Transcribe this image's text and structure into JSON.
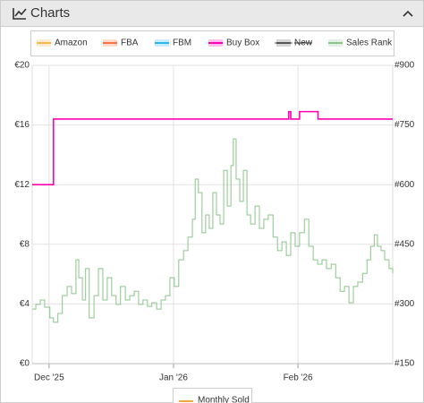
{
  "header": {
    "title": "Charts"
  },
  "chart_data": {
    "type": "line",
    "xticks": [
      {
        "value": 0,
        "label": "Dec '25"
      },
      {
        "value": 31,
        "label": "Jan '26"
      },
      {
        "value": 62,
        "label": "Feb '26"
      }
    ],
    "xlim": [
      -4.2,
      85.6
    ],
    "ylim": [
      0,
      20
    ],
    "yticks": [
      {
        "value": 0,
        "label": "€0"
      },
      {
        "value": 4,
        "label": "€4"
      },
      {
        "value": 8,
        "label": "€8"
      },
      {
        "value": 12,
        "label": "€12"
      },
      {
        "value": 16,
        "label": "€16"
      },
      {
        "value": 20,
        "label": "€20"
      }
    ],
    "y2lim": [
      150,
      900
    ],
    "y2ticks": [
      {
        "value": 150,
        "label": "#150"
      },
      {
        "value": 300,
        "label": "#300"
      },
      {
        "value": 450,
        "label": "#450"
      },
      {
        "value": 600,
        "label": "#600"
      },
      {
        "value": 750,
        "label": "#750"
      },
      {
        "value": 900,
        "label": "#900"
      }
    ],
    "grid": true,
    "step": true,
    "series": [
      {
        "name": "Amazon",
        "color": "#ffb74d",
        "x": [],
        "values": []
      },
      {
        "name": "FBA",
        "color": "#ff7043",
        "x": [],
        "values": []
      },
      {
        "name": "FBM",
        "color": "#29b6f6",
        "x": [],
        "values": []
      },
      {
        "name": "Buy Box",
        "color": "#ff00b4",
        "x": [
          -4.2,
          1.1,
          59.7,
          60.2,
          62.4,
          67.0,
          85.6
        ],
        "values": [
          12,
          16.4,
          16.9,
          16.4,
          16.9,
          16.4,
          16.4
        ]
      },
      {
        "name": "New",
        "color": "#555555",
        "visible": false,
        "x": [],
        "values": []
      },
      {
        "name": "Sales Rank",
        "color": "#8bc48b",
        "axis": "y2",
        "x": [
          -4.2,
          -3.3,
          -2.2,
          -1.1,
          0.2,
          1.1,
          2.2,
          3.3,
          4.5,
          5.6,
          6.7,
          7.4,
          8.3,
          9.1,
          10.0,
          11.2,
          12.3,
          13.4,
          14.5,
          15.6,
          16.7,
          17.8,
          19.0,
          20.1,
          21.2,
          22.3,
          23.4,
          24.5,
          25.6,
          26.8,
          27.9,
          29.0,
          30.1,
          31.2,
          32.3,
          33.5,
          34.6,
          35.7,
          36.4,
          37.2,
          38.1,
          39.0,
          39.9,
          40.8,
          41.7,
          42.6,
          43.5,
          44.4,
          45.3,
          45.9,
          46.6,
          47.5,
          48.4,
          49.3,
          50.2,
          51.3,
          52.4,
          53.5,
          54.6,
          55.8,
          56.9,
          58.0,
          59.1,
          60.2,
          61.3,
          62.4,
          63.6,
          64.7,
          65.8,
          66.9,
          68.0,
          69.1,
          70.3,
          71.4,
          72.5,
          73.6,
          74.7,
          75.8,
          76.9,
          78.1,
          79.2,
          80.1,
          81.0,
          81.8,
          82.7,
          83.6,
          84.7,
          85.6
        ],
        "values": [
          287,
          299,
          310,
          292,
          265,
          254,
          276,
          321,
          344,
          326,
          411,
          366,
          310,
          389,
          265,
          321,
          389,
          310,
          366,
          321,
          299,
          344,
          310,
          321,
          332,
          299,
          310,
          294,
          303,
          287,
          310,
          321,
          366,
          344,
          411,
          434,
          468,
          513,
          614,
          580,
          479,
          524,
          490,
          580,
          524,
          501,
          636,
          546,
          648,
          715,
          614,
          558,
          636,
          524,
          501,
          546,
          490,
          513,
          524,
          468,
          434,
          456,
          422,
          479,
          445,
          479,
          513,
          445,
          411,
          400,
          411,
          389,
          400,
          366,
          332,
          344,
          303,
          344,
          355,
          377,
          411,
          445,
          474,
          445,
          434,
          411,
          389,
          377
        ]
      }
    ],
    "bottom_legend": {
      "name": "Monthly Sold",
      "color": "#f5a742"
    }
  }
}
